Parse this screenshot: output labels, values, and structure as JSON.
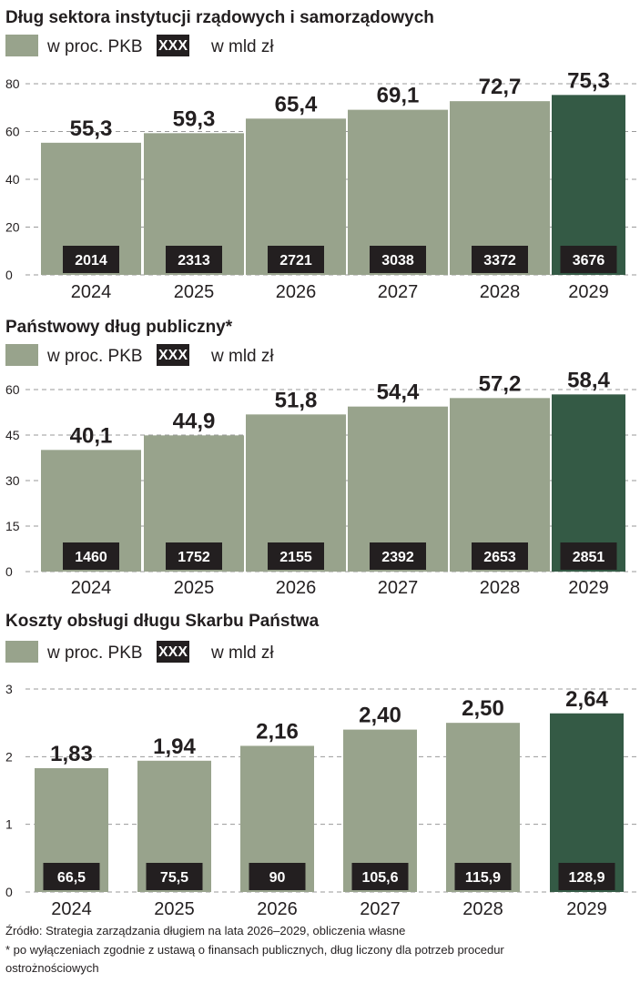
{
  "colors": {
    "bar": "#98a38c",
    "highlight": "#345a45",
    "label_box": "#231f20",
    "grid": "#9a9a9a"
  },
  "chart_data": [
    {
      "type": "bar",
      "title": "Dług sektora instytucji rządowych i samorządowych",
      "legend": {
        "bar_label": "w proc. PKB",
        "box_sample": "XXX",
        "box_label": "w mld zł"
      },
      "categories": [
        "2024",
        "2025",
        "2026",
        "2027",
        "2028",
        "2029"
      ],
      "values": [
        55.3,
        59.3,
        65.4,
        69.1,
        72.7,
        75.3
      ],
      "value_labels": [
        "55,3",
        "59,3",
        "65,4",
        "69,1",
        "72,7",
        "75,3"
      ],
      "secondary_values": [
        "2014",
        "2313",
        "2721",
        "3038",
        "3372",
        "3676"
      ],
      "yticks": [
        0,
        20,
        40,
        60,
        80
      ],
      "ylim": [
        0,
        80
      ],
      "grid": true
    },
    {
      "type": "bar",
      "title": "Państwowy dług publiczny*",
      "legend": {
        "bar_label": "w proc. PKB",
        "box_sample": "XXX",
        "box_label": "w mld zł"
      },
      "categories": [
        "2024",
        "2025",
        "2026",
        "2027",
        "2028",
        "2029"
      ],
      "values": [
        40.1,
        44.9,
        51.8,
        54.4,
        57.2,
        58.4
      ],
      "value_labels": [
        "40,1",
        "44,9",
        "51,8",
        "54,4",
        "57,2",
        "58,4"
      ],
      "secondary_values": [
        "1460",
        "1752",
        "2155",
        "2392",
        "2653",
        "2851"
      ],
      "yticks": [
        0,
        15,
        30,
        45,
        60
      ],
      "ylim": [
        0,
        60
      ],
      "grid": true
    },
    {
      "type": "bar",
      "title": "Koszty obsługi długu Skarbu Państwa",
      "legend": {
        "bar_label": "w proc. PKB",
        "box_sample": "XXX",
        "box_label": "w mld zł"
      },
      "categories": [
        "2024",
        "2025",
        "2026",
        "2027",
        "2028",
        "2029"
      ],
      "values": [
        1.83,
        1.94,
        2.16,
        2.4,
        2.5,
        2.64
      ],
      "value_labels": [
        "1,83",
        "1,94",
        "2,16",
        "2,40",
        "2,50",
        "2,64"
      ],
      "secondary_values": [
        "66,5",
        "75,5",
        "90",
        "105,6",
        "115,9",
        "128,9"
      ],
      "yticks": [
        0,
        1,
        2,
        3
      ],
      "ylim": [
        0,
        3
      ],
      "grid": true
    }
  ],
  "footer": {
    "source": "Źródło: Strategia zarządzania długiem na lata 2026–2029, obliczenia własne",
    "note_line1": "* po wyłączeniach zgodnie z ustawą o finansach publicznych, dług liczony dla potrzeb procedur",
    "note_line2": "ostrożnościowych"
  }
}
